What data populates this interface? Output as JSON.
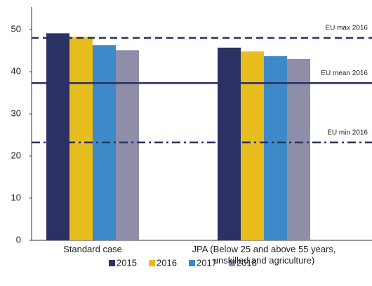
{
  "chart_data": {
    "type": "bar",
    "categories": [
      "Standard case",
      "JPA (Below 25 and above 55 years, unskilled and agriculture)"
    ],
    "series": [
      {
        "name": "2015",
        "color": "#2b3163",
        "values": [
          49.1,
          45.7
        ]
      },
      {
        "name": "2016",
        "color": "#e8be1f",
        "values": [
          48.3,
          44.8
        ]
      },
      {
        "name": "2017",
        "color": "#3e8ac9",
        "values": [
          46.3,
          43.7
        ]
      },
      {
        "name": "2018",
        "color": "#8e8ea8",
        "values": [
          45.1,
          43.0
        ]
      }
    ],
    "ylim": [
      0,
      52.5
    ],
    "yticks": [
      0,
      10,
      20,
      30,
      40,
      50
    ],
    "reference_lines": [
      {
        "label": "EU max 2016",
        "value": 48.0,
        "style": "dashed",
        "color": "#2b3163"
      },
      {
        "label": "EU mean 2016",
        "value": 37.3,
        "style": "solid",
        "color": "#2b3163"
      },
      {
        "label": "EU min 2016",
        "value": 23.2,
        "style": "dashdot",
        "color": "#2b3163"
      }
    ],
    "legend": "bottom"
  }
}
